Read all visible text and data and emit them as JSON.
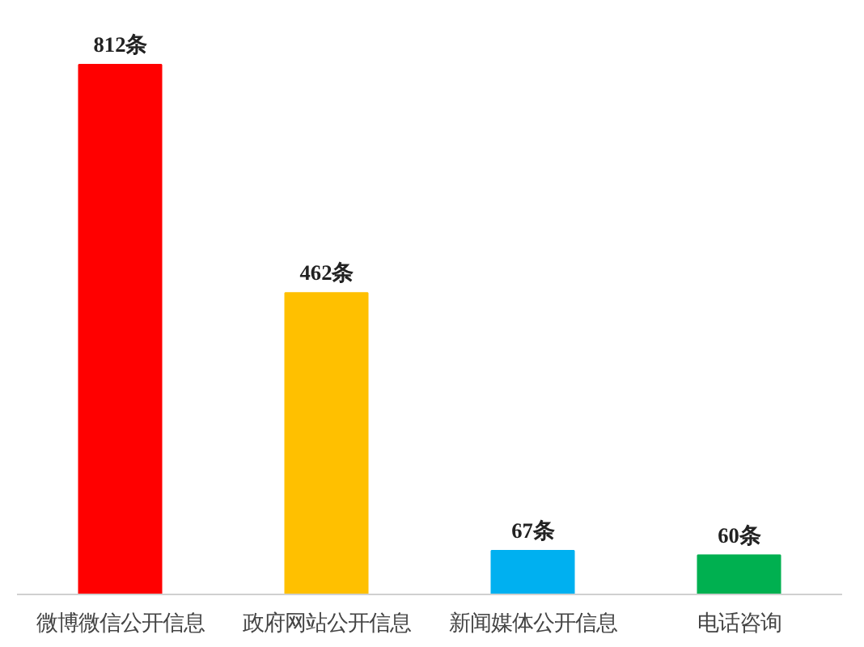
{
  "chart_data": {
    "type": "bar",
    "categories": [
      "微博微信公开信息",
      "政府网站公开信息",
      "新闻媒体公开信息",
      "电话咨询"
    ],
    "values": [
      812,
      462,
      67,
      60
    ],
    "colors": [
      "#ff0000",
      "#ffc000",
      "#00b0f0",
      "#00b050"
    ],
    "value_labels": [
      "812条",
      "462条",
      "67条",
      "60条"
    ],
    "grid": false,
    "tick_labels": "x"
  }
}
